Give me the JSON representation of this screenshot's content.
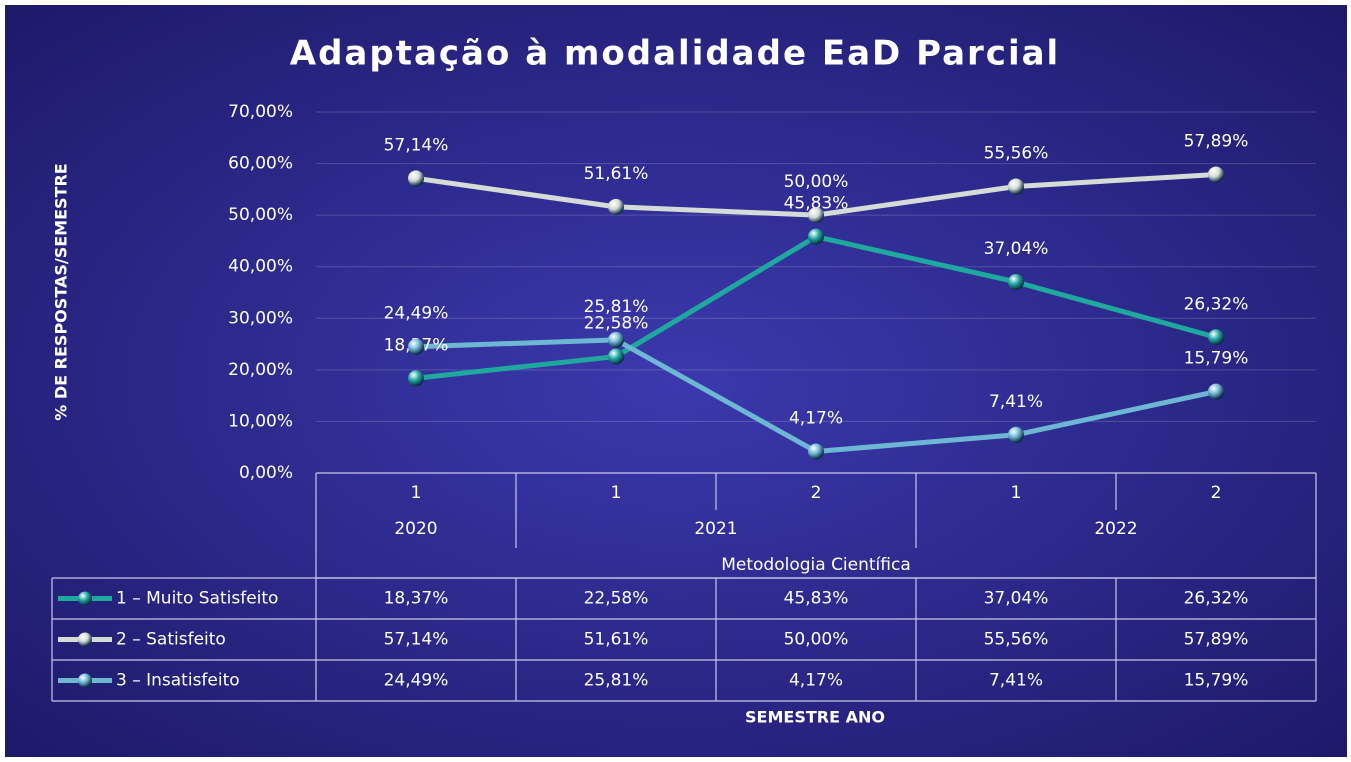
{
  "chart_data": {
    "type": "line",
    "title": "Adaptação à modalidade EaD Parcial",
    "ylabel": "% DE RESPOSTAS/SEMESTRE",
    "xlabel": "SEMESTRE ANO",
    "categories": [
      "1",
      "1",
      "2",
      "1",
      "2"
    ],
    "years": [
      "2020",
      "2021",
      null,
      "2022",
      null
    ],
    "group": "Metodologia Científica",
    "ylim": [
      0,
      70
    ],
    "yticks": [
      {
        "value": 0,
        "label": "0,00%"
      },
      {
        "value": 10,
        "label": "10,00%"
      },
      {
        "value": 20,
        "label": "20,00%"
      },
      {
        "value": 30,
        "label": "30,00%"
      },
      {
        "value": 40,
        "label": "40,00%"
      },
      {
        "value": 50,
        "label": "50,00%"
      },
      {
        "value": 60,
        "label": "60,00%"
      },
      {
        "value": 70,
        "label": "70,00%"
      }
    ],
    "grid": true,
    "series": [
      {
        "name": "1 – Muito Satisfeito",
        "color": "#1fa89e",
        "values": [
          18.37,
          22.58,
          45.83,
          37.04,
          26.32
        ],
        "value_labels": [
          "18,37%",
          "22,58%",
          "45,83%",
          "37,04%",
          "26,32%"
        ]
      },
      {
        "name": "2 – Satisfeito",
        "color": "#d3dcd6",
        "values": [
          57.14,
          51.61,
          50.0,
          55.56,
          57.89
        ],
        "value_labels": [
          "57,14%",
          "51,61%",
          "50,00%",
          "55,56%",
          "57,89%"
        ]
      },
      {
        "name": "3 – Insatisfeito",
        "color": "#6db6d4",
        "values": [
          24.49,
          25.81,
          4.17,
          7.41,
          15.79
        ],
        "value_labels": [
          "24,49%",
          "25,81%",
          "4,17%",
          "7,41%",
          "15,79%"
        ]
      }
    ]
  }
}
